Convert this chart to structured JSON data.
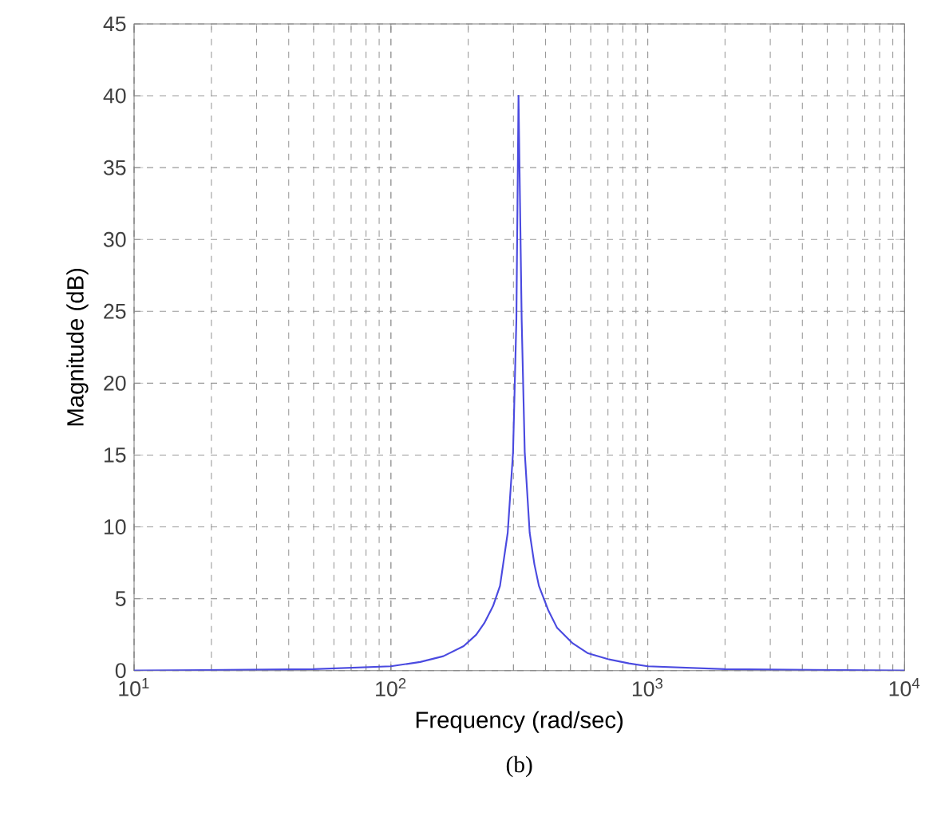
{
  "chart_data": {
    "type": "line",
    "xlabel": "Frequency  (rad/sec)",
    "ylabel": "Magnitude (dB)",
    "annotations": [
      "(b)"
    ],
    "log": "x",
    "grid": true,
    "xlim": [
      10,
      10000
    ],
    "ylim": [
      0,
      45
    ],
    "xticks": [
      {
        "value": 10,
        "label": "10$^{1}$"
      },
      {
        "value": 100,
        "label": "10$^{2}$"
      },
      {
        "value": 1000,
        "label": "10$^{3}$"
      },
      {
        "value": 10000,
        "label": "10$^{4}$"
      }
    ],
    "yticks": [
      0,
      5,
      10,
      15,
      20,
      25,
      30,
      35,
      40,
      45
    ],
    "series": [
      {
        "color": "#4a4ae0",
        "x": [
          10,
          50,
          100,
          130,
          160,
          192,
          215,
          231,
          250,
          266,
          285,
          299,
          308,
          314,
          323,
          332,
          347,
          362,
          377,
          410,
          443,
          510,
          586,
          700,
          845,
          1000,
          2000,
          10000
        ],
        "values": [
          0,
          0.1,
          0.3,
          0.6,
          1.0,
          1.7,
          2.5,
          3.3,
          4.5,
          5.9,
          9.6,
          15.2,
          24.4,
          40,
          24.4,
          15.2,
          9.6,
          7.4,
          5.9,
          4.2,
          3.0,
          1.9,
          1.2,
          0.8,
          0.5,
          0.3,
          0.1,
          0
        ]
      }
    ]
  }
}
